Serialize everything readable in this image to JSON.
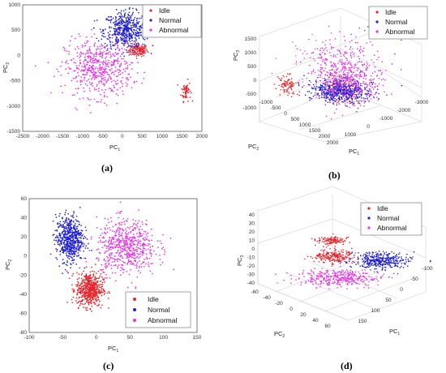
{
  "chart_data": [
    {
      "panel": "(a)",
      "type": "scatter",
      "xlabel_main": "PC",
      "xlabel_sub": "1",
      "ylabel_main": "PC",
      "ylabel_sub": "2",
      "xlim": [
        -2500,
        2000
      ],
      "ylim": [
        -1500,
        1000
      ],
      "xticks": [
        -2500,
        -2000,
        -1500,
        -1000,
        -500,
        0,
        500,
        1000,
        1500,
        2000
      ],
      "yticks": [
        -1500,
        -1000,
        -500,
        0,
        500,
        1000
      ],
      "series": [
        {
          "name": "Idle",
          "color": "#e8242a",
          "clusters": [
            {
              "cx": 400,
              "cy": 100,
              "sx": 120,
              "sy": 60,
              "n": 140
            },
            {
              "cx": 1600,
              "cy": -700,
              "sx": 60,
              "sy": 100,
              "n": 60
            }
          ]
        },
        {
          "name": "Normal",
          "color": "#1f1fd6",
          "clusters": [
            {
              "cx": 100,
              "cy": 500,
              "sx": 280,
              "sy": 180,
              "n": 520
            }
          ]
        },
        {
          "name": "Abnormal",
          "color": "#e633e6",
          "clusters": [
            {
              "cx": -600,
              "cy": -250,
              "sx": 420,
              "sy": 280,
              "n": 560
            }
          ]
        }
      ]
    },
    {
      "panel": "(b)",
      "type": "scatter",
      "projection": "3d",
      "xlabel_main": "PC",
      "xlabel_sub": "1",
      "ylabel_main": "PC",
      "ylabel_sub": "2",
      "zlabel_main": "PC",
      "zlabel_sub": "3",
      "xticks": [
        -3000,
        -2000,
        -1000,
        0,
        1000,
        2000
      ],
      "yticks": [
        -1000,
        -500,
        0,
        500,
        1000,
        1500,
        2000
      ],
      "zticks": [
        -1000,
        -500,
        0,
        500,
        1000,
        1500
      ],
      "series": [
        {
          "name": "Idle",
          "color": "#e8242a",
          "clusters": [
            {
              "cx": 0,
              "cy": -200,
              "sx": 0,
              "sy": 0,
              "n": 90,
              "screen": "left"
            },
            {
              "cx": 0,
              "cy": 0,
              "sx": 0,
              "sy": 0,
              "n": 140,
              "screen": "center"
            }
          ]
        },
        {
          "name": "Normal",
          "color": "#1f1fd6",
          "clusters": [
            {
              "cx": 0,
              "cy": 0,
              "sx": 0,
              "sy": 0,
              "n": 520,
              "screen": "center-low"
            }
          ]
        },
        {
          "name": "Abnormal",
          "color": "#e633e6",
          "clusters": [
            {
              "cx": 0,
              "cy": 0,
              "sx": 0,
              "sy": 0,
              "n": 520,
              "screen": "center-high"
            }
          ]
        }
      ]
    },
    {
      "panel": "(c)",
      "type": "scatter",
      "xlabel_main": "PC",
      "xlabel_sub": "1",
      "ylabel_main": "PC",
      "ylabel_sub": "2",
      "xlim": [
        -100,
        150
      ],
      "ylim": [
        -80,
        60
      ],
      "xticks": [
        -100,
        -50,
        0,
        50,
        100,
        150
      ],
      "yticks": [
        -80,
        -60,
        -40,
        -20,
        0,
        20,
        40,
        60
      ],
      "series": [
        {
          "name": "Idle",
          "color": "#e8242a",
          "clusters": [
            {
              "cx": -10,
              "cy": -35,
              "sx": 10,
              "sy": 9,
              "n": 560
            }
          ]
        },
        {
          "name": "Normal",
          "color": "#1f1fd6",
          "clusters": [
            {
              "cx": -40,
              "cy": 18,
              "sx": 10,
              "sy": 12,
              "n": 600
            }
          ]
        },
        {
          "name": "Abnormal",
          "color": "#e633e6",
          "clusters": [
            {
              "cx": 45,
              "cy": 10,
              "sx": 22,
              "sy": 14,
              "n": 620
            }
          ]
        }
      ]
    },
    {
      "panel": "(d)",
      "type": "scatter",
      "projection": "3d",
      "xlabel_main": "PC",
      "xlabel_sub": "1",
      "ylabel_main": "PC",
      "ylabel_sub": "2",
      "zlabel_main": "PC",
      "zlabel_sub": "3",
      "xticks": [
        -100,
        -50,
        0,
        50,
        100,
        150
      ],
      "yticks": [
        -60,
        -40,
        -20,
        0,
        20,
        40,
        60
      ],
      "zticks": [
        -40,
        -30,
        -20,
        -10,
        0,
        10,
        20,
        30,
        40
      ],
      "series": [
        {
          "name": "Idle",
          "color": "#e8242a",
          "clusters": [
            {
              "n": 120,
              "screen": "top"
            },
            {
              "n": 220,
              "screen": "upper"
            }
          ]
        },
        {
          "name": "Normal",
          "color": "#1f1fd6",
          "clusters": [
            {
              "n": 380,
              "screen": "right"
            }
          ]
        },
        {
          "name": "Abnormal",
          "color": "#e633e6",
          "clusters": [
            {
              "n": 380,
              "screen": "lower"
            }
          ]
        }
      ]
    }
  ]
}
